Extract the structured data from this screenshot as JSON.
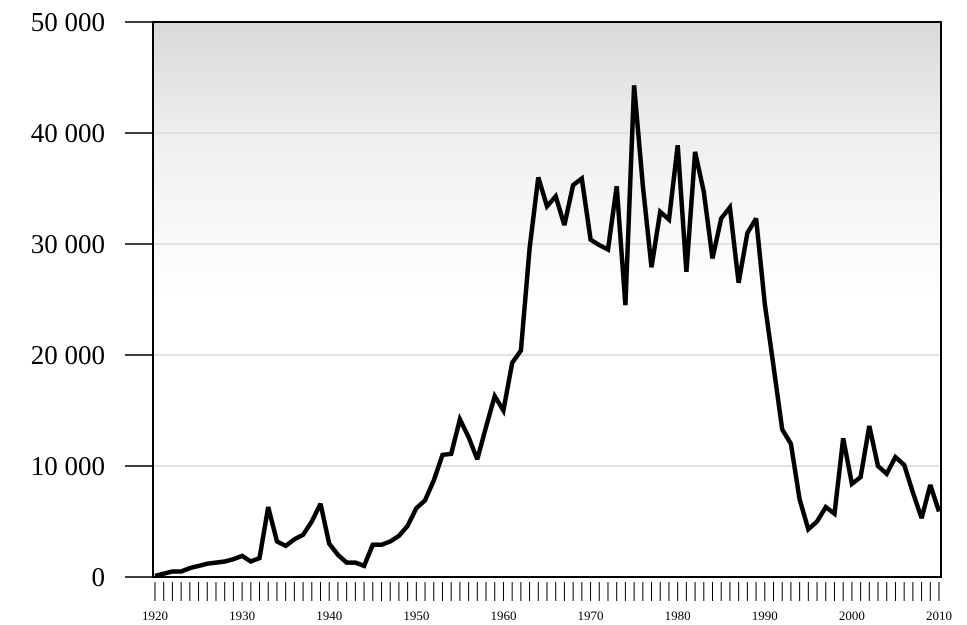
{
  "chart_data": {
    "type": "line",
    "title": "",
    "xlabel": "",
    "ylabel": "",
    "xlim": [
      1920,
      2010
    ],
    "ylim": [
      0,
      50000
    ],
    "grid": true,
    "line_color": "#000000",
    "y_ticks": [
      {
        "value": 0,
        "label": "0"
      },
      {
        "value": 10000,
        "label": "10 000"
      },
      {
        "value": 20000,
        "label": "20 000"
      },
      {
        "value": 30000,
        "label": "30 000"
      },
      {
        "value": 40000,
        "label": "40 000"
      },
      {
        "value": 50000,
        "label": "50 000"
      }
    ],
    "x_ticks": [
      {
        "value": 1920,
        "label": "1920"
      },
      {
        "value": 1930,
        "label": "1930"
      },
      {
        "value": 1940,
        "label": "1940"
      },
      {
        "value": 1950,
        "label": "1950"
      },
      {
        "value": 1960,
        "label": "1960"
      },
      {
        "value": 1970,
        "label": "1970"
      },
      {
        "value": 1980,
        "label": "1980"
      },
      {
        "value": 1990,
        "label": "1990"
      },
      {
        "value": 2000,
        "label": "2000"
      },
      {
        "value": 2010,
        "label": "2010"
      }
    ],
    "series": [
      {
        "x": [
          1920,
          1921,
          1922,
          1923,
          1924,
          1925,
          1926,
          1927,
          1928,
          1929,
          1930,
          1931,
          1932,
          1933,
          1934,
          1935,
          1936,
          1937,
          1938,
          1939,
          1940,
          1941,
          1942,
          1943,
          1944,
          1945,
          1946,
          1947,
          1948,
          1949,
          1950,
          1951,
          1952,
          1953,
          1954,
          1955,
          1956,
          1957,
          1958,
          1959,
          1960,
          1961,
          1962,
          1963,
          1964,
          1965,
          1966,
          1967,
          1968,
          1969,
          1970,
          1971,
          1972,
          1973,
          1974,
          1975,
          1976,
          1977,
          1978,
          1979,
          1980,
          1981,
          1982,
          1983,
          1984,
          1985,
          1986,
          1987,
          1988,
          1989,
          1990,
          1991,
          1992,
          1993,
          1994,
          1995,
          1996,
          1997,
          1998,
          1999,
          2000,
          2001,
          2002,
          2003,
          2004,
          2005,
          2006,
          2007,
          2008,
          2009,
          2010
        ],
        "values": [
          100,
          300,
          500,
          500,
          800,
          1000,
          1200,
          1300,
          1400,
          1600,
          1900,
          1400,
          1700,
          6300,
          3200,
          2800,
          3400,
          3800,
          5000,
          6600,
          3000,
          2000,
          1300,
          1300,
          1000,
          2900,
          2900,
          3200,
          3700,
          4600,
          6200,
          6900,
          8700,
          11000,
          11100,
          14200,
          12600,
          10600,
          13500,
          16300,
          15000,
          19300,
          20400,
          29600,
          36000,
          33400,
          34300,
          31700,
          35300,
          35900,
          30400,
          29900,
          29500,
          35200,
          24500,
          44300,
          35300,
          27900,
          32900,
          32200,
          38900,
          27500,
          38300,
          34700,
          28700,
          32300,
          33300,
          26500,
          31000,
          32300,
          24600,
          19000,
          13300,
          12000,
          7000,
          4300,
          5000,
          6300,
          5700,
          12500,
          8400,
          9000,
          13600,
          10000,
          9300,
          10800,
          10100,
          7600,
          5300,
          8300,
          5900
        ]
      }
    ]
  }
}
